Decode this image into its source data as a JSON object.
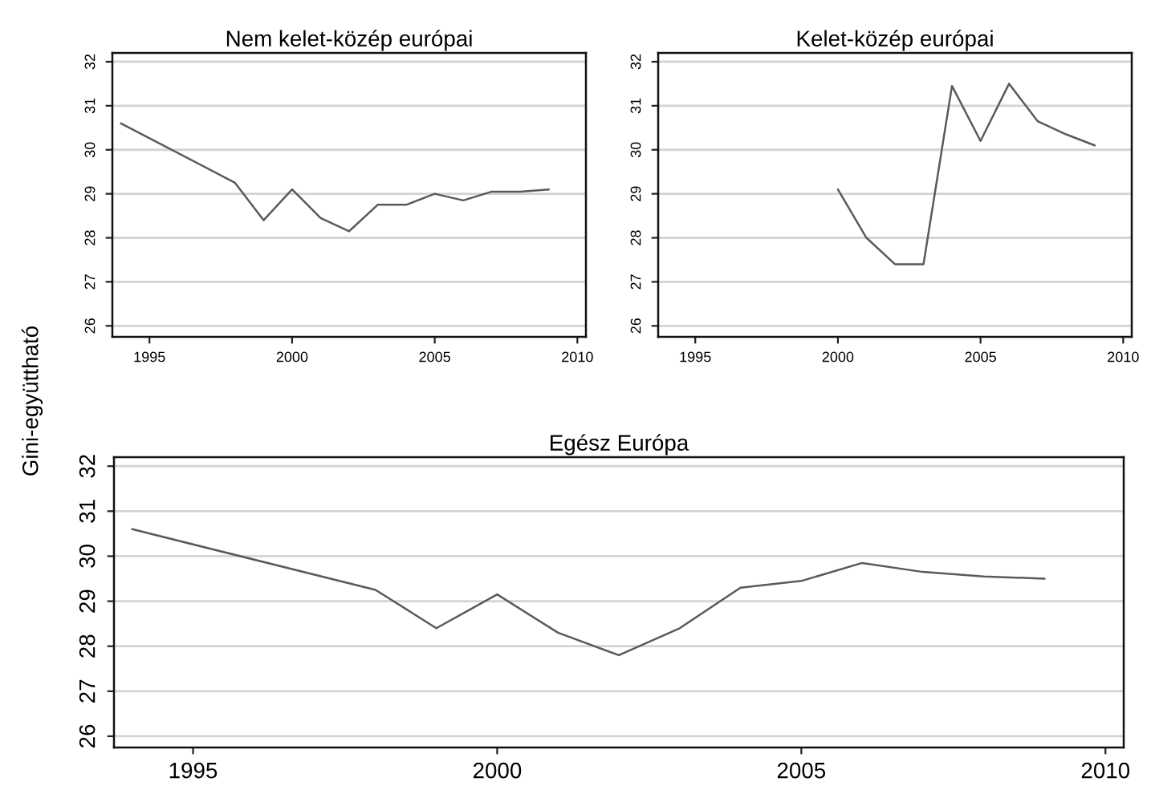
{
  "chart_data": [
    {
      "type": "line",
      "title": "Nem kelet-közép európai",
      "ylabel": "Gini-együttható",
      "x": [
        1994,
        1998,
        1999,
        2000,
        2001,
        2002,
        2003,
        2004,
        2005,
        2006,
        2007,
        2008,
        2009
      ],
      "series": [
        {
          "color": "#5a5a5a",
          "values": [
            30.6,
            29.25,
            28.4,
            29.1,
            28.45,
            28.15,
            28.75,
            28.75,
            29.0,
            28.85,
            29.05,
            29.05,
            29.1
          ]
        }
      ],
      "xlim": [
        1993.7,
        2010.3
      ],
      "ylim": [
        25.75,
        32.2
      ],
      "xticks": [
        1995,
        2000,
        2005,
        2010
      ],
      "yticks": [
        26,
        27,
        28,
        29,
        30,
        31,
        32
      ],
      "grid": "y"
    },
    {
      "type": "line",
      "title": "Kelet-közép európai",
      "x": [
        2000,
        2001,
        2002,
        2003,
        2004,
        2005,
        2006,
        2007,
        2008,
        2009
      ],
      "series": [
        {
          "color": "#5a5a5a",
          "values": [
            29.1,
            28.0,
            27.4,
            27.4,
            31.45,
            30.2,
            31.5,
            30.65,
            30.35,
            30.1
          ]
        }
      ],
      "xlim": [
        1993.7,
        2010.3
      ],
      "ylim": [
        25.75,
        32.2
      ],
      "xticks": [
        1995,
        2000,
        2005,
        2010
      ],
      "yticks": [
        26,
        27,
        28,
        29,
        30,
        31,
        32
      ],
      "grid": "y"
    },
    {
      "type": "line",
      "title": "Egész Európa",
      "x": [
        1994,
        1998,
        1999,
        2000,
        2001,
        2002,
        2003,
        2004,
        2005,
        2006,
        2007,
        2008,
        2009
      ],
      "series": [
        {
          "color": "#5a5a5a",
          "values": [
            30.6,
            29.25,
            28.4,
            29.15,
            28.3,
            27.8,
            28.4,
            29.3,
            29.45,
            29.85,
            29.65,
            29.55,
            29.5
          ]
        }
      ],
      "xlim": [
        1993.7,
        2010.3
      ],
      "ylim": [
        25.75,
        32.2
      ],
      "xticks": [
        1995,
        2000,
        2005,
        2010
      ],
      "yticks": [
        26,
        27,
        28,
        29,
        30,
        31,
        32
      ],
      "grid": "y"
    }
  ]
}
